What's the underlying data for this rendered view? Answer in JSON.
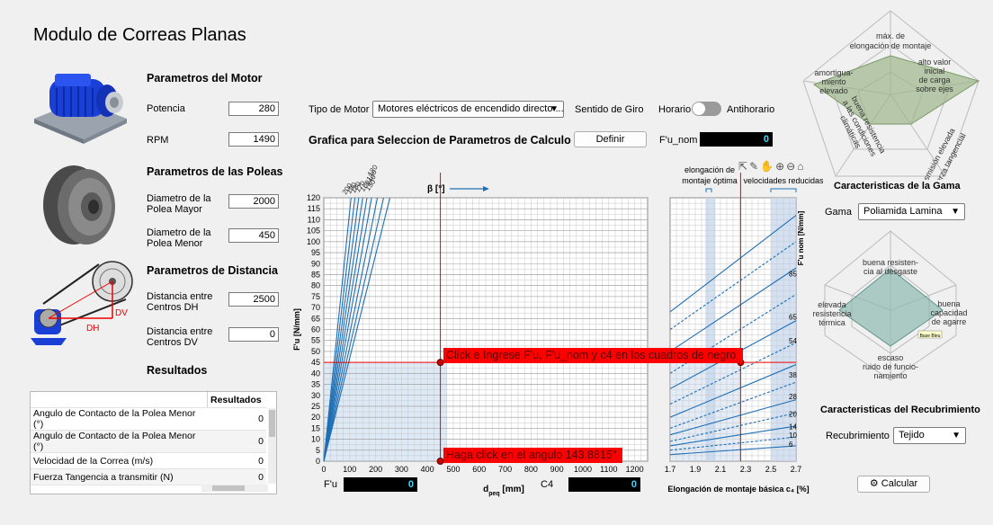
{
  "app": {
    "title": "Modulo de Correas Planas"
  },
  "motor": {
    "heading": "Parametros del Motor",
    "potencia_label": "Potencia",
    "potencia_value": "280",
    "rpm_label": "RPM",
    "rpm_value": "1490",
    "tipo_label": "Tipo de Motor",
    "tipo_value": "Motores eléctricos de encendido directo ...",
    "giro_label": "Sentido de Giro",
    "giro_left": "Horario",
    "giro_right": "Antihorario"
  },
  "poleas": {
    "heading": "Parametros de las Poleas",
    "mayor_label_1": "Diametro de la",
    "mayor_label_2": "Polea Mayor",
    "mayor_value": "2000",
    "menor_label_1": "Diametro de la",
    "menor_label_2": "Polea Menor",
    "menor_value": "450"
  },
  "distancia": {
    "heading": "Parametros de Distancia",
    "dh_label_1": "Distancia entre",
    "dh_label_2": "Centros DH",
    "dh_value": "2500",
    "dv_label_1": "Distancia entre",
    "dv_label_2": "Centros DV",
    "dv_value": "0",
    "diagram_dv": "DV",
    "diagram_dh": "DH"
  },
  "resultados": {
    "heading": "Resultados",
    "column": "Resultados",
    "rows": [
      {
        "label": "Angulo de Contacto de la Polea Menor (°)",
        "value": "0"
      },
      {
        "label": "Angulo de Contacto de la Polea Menor (°)",
        "value": "0"
      },
      {
        "label": "Velocidad de la Correa (m/s)",
        "value": "0"
      },
      {
        "label": "Fuerza Tangencia a transmitir (N)",
        "value": "0"
      }
    ]
  },
  "grafica": {
    "heading": "Grafica para Seleccion de Parametros de Calculo",
    "definir": "Definir",
    "fu_nom_label": "F'u_nom",
    "fu_nom_value": "0",
    "fu_label": "F'u",
    "fu_value": "0",
    "c4_label": "C4",
    "c4_value": "0",
    "red_msg_1": "Click e Ingrese F'u, F'u_nom y c4 en los cuadros de negro",
    "red_msg_2": "Haga click en el angulo 143.8815°",
    "beta_label": "β [°]",
    "x_label": "d",
    "x_sub": "peq",
    "x_unit": " [mm]",
    "y_label": "F'u [N/mm]",
    "x2_label": "Elongación de montaje básica c₄ [%]",
    "y2_label": "F'u nom [N/mm]",
    "elong_label_1": "elongación de",
    "elong_label_2": "montaje óptima",
    "vel_label": "velocidades reducidas",
    "y_ticks": [
      "0",
      "5",
      "10",
      "15",
      "20",
      "25",
      "30",
      "35",
      "40",
      "45",
      "50",
      "55",
      "60",
      "65",
      "70",
      "75",
      "80",
      "85",
      "90",
      "95",
      "100",
      "105",
      "110",
      "115",
      "120"
    ],
    "x_ticks": [
      "0",
      "100",
      "200",
      "300",
      "400",
      "500",
      "600",
      "700",
      "800",
      "900",
      "1000",
      "1100",
      "1200"
    ],
    "beta_ticks": [
      "200",
      "190",
      "180",
      "170",
      "160",
      "150",
      "140",
      "130",
      "120"
    ],
    "x2_ticks": [
      "1.7",
      "1.9",
      "2.1",
      "2.3",
      "2.5",
      "2.7"
    ],
    "right_ticks": [
      "85",
      "65",
      "54",
      "38",
      "28",
      "20",
      "14",
      "10",
      "6"
    ]
  },
  "gama": {
    "heading": "Caracteristicas de la Gama",
    "label": "Gama",
    "value": "Poliamida Lamina",
    "radar_labels": [
      "máx. de",
      "elongación de montaje",
      "alto valor",
      "inicial",
      "de carga",
      "sobre ejes",
      "transmisión elevada",
      "de fuerza tangencial",
      "buena resistencia",
      "a las condiciones",
      "climáticas",
      "amortigua-",
      "miento",
      "elevado"
    ]
  },
  "recubrimiento": {
    "heading": "Caracteristicas del Recubrimiento",
    "label": "Recubrimiento",
    "value": "Tejido",
    "radar_labels": [
      "buena resisten-",
      "cia al desgaste",
      "buena",
      "capacidad",
      "de agarre",
      "escaso",
      "ruido de funcio-",
      "namiento",
      "elevada",
      "resistencia",
      "térmica"
    ],
    "tag": "Base Bleu"
  },
  "calcular": "Calcular",
  "colors": {
    "accent": "#1f6fb5",
    "red": "#ff0000",
    "olive": "#9db78a",
    "teal": "#8fb9b0"
  }
}
